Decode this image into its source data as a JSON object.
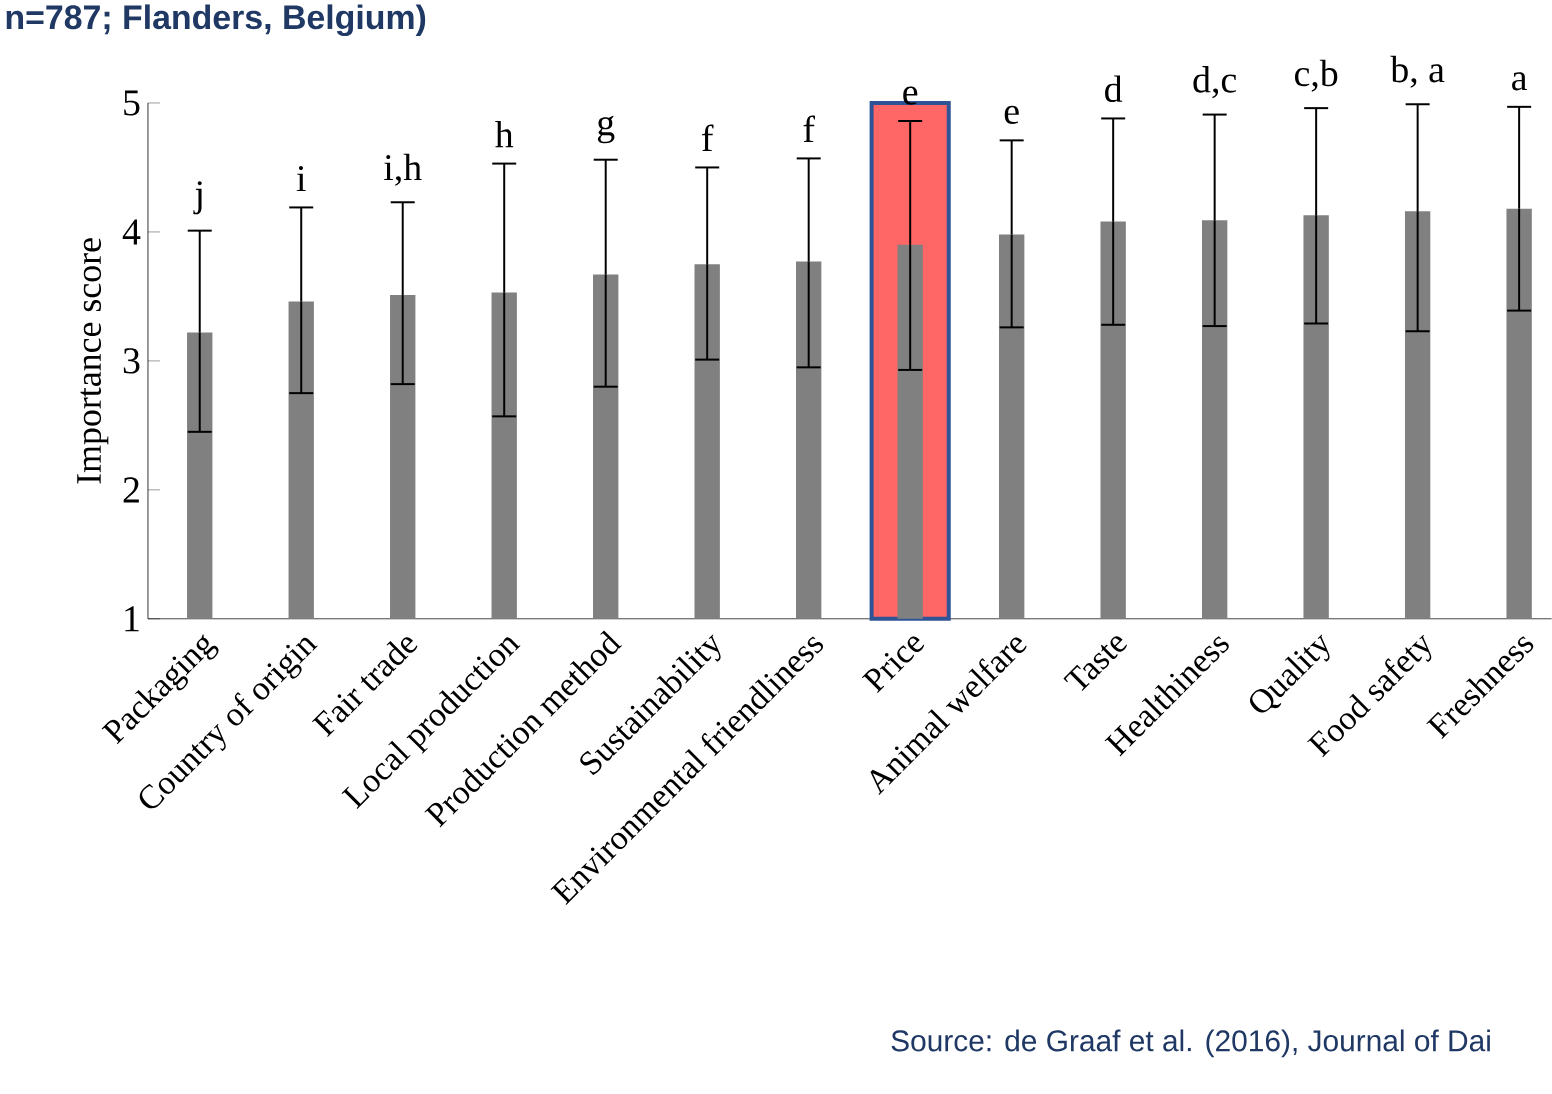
{
  "chart_data": {
    "type": "bar",
    "title": "n=787; Flanders, Belgium)",
    "ylabel": "Importance score",
    "categories": [
      "Packaging",
      "Country of origin",
      "Fair trade",
      "Local production",
      "Production method",
      "Sustainability",
      "Environmental friendliness",
      "Price",
      "Animal welfare",
      "Taste",
      "Healthiness",
      "Quality",
      "Food safety",
      "Freshness"
    ],
    "values": [
      3.22,
      3.46,
      3.51,
      3.53,
      3.67,
      3.75,
      3.77,
      3.9,
      3.98,
      4.08,
      4.09,
      4.13,
      4.16,
      4.18
    ],
    "errors": [
      [
        2.45,
        4.01
      ],
      [
        2.75,
        4.19
      ],
      [
        2.82,
        4.23
      ],
      [
        2.57,
        4.53
      ],
      [
        2.8,
        4.56
      ],
      [
        3.01,
        4.5
      ],
      [
        2.95,
        4.57
      ],
      [
        2.93,
        4.86
      ],
      [
        3.26,
        4.71
      ],
      [
        3.28,
        4.88
      ],
      [
        3.27,
        4.91
      ],
      [
        3.29,
        4.96
      ],
      [
        3.23,
        4.99
      ],
      [
        3.39,
        4.97
      ]
    ],
    "color": "#808080",
    "ylim": [
      1,
      5
    ],
    "yticks": [
      1,
      2,
      3,
      4,
      5
    ],
    "grid": false,
    "bands": [
      {
        "axis": "x",
        "from": "Price",
        "to": "Price",
        "color": "#ff6666"
      }
    ],
    "annotations": [
      {
        "text": "j",
        "x": "Packaging",
        "y": 4.01
      },
      {
        "text": "i",
        "x": "Country of origin",
        "y": 4.19
      },
      {
        "text": "i,h",
        "x": "Fair trade",
        "y": 4.23
      },
      {
        "text": "h",
        "x": "Local production",
        "y": 4.53
      },
      {
        "text": "g",
        "x": "Production method",
        "y": 4.56
      },
      {
        "text": "f",
        "x": "Sustainability",
        "y": 4.5
      },
      {
        "text": "f",
        "x": "Environmental friendliness",
        "y": 4.57
      },
      {
        "text": "e",
        "x": "Price",
        "y": 4.86
      },
      {
        "text": "e",
        "x": "Animal welfare",
        "y": 4.71
      },
      {
        "text": "d",
        "x": "Taste",
        "y": 4.88
      },
      {
        "text": "d,c",
        "x": "Healthiness",
        "y": 4.91
      },
      {
        "text": "c,b",
        "x": "Quality",
        "y": 4.96
      },
      {
        "text": "b, a",
        "x": "Food safety",
        "y": 4.99
      },
      {
        "text": "a",
        "x": "Freshness",
        "y": 4.97
      },
      "Source: de Graaf et al. (2016), Journal of Dai"
    ]
  }
}
